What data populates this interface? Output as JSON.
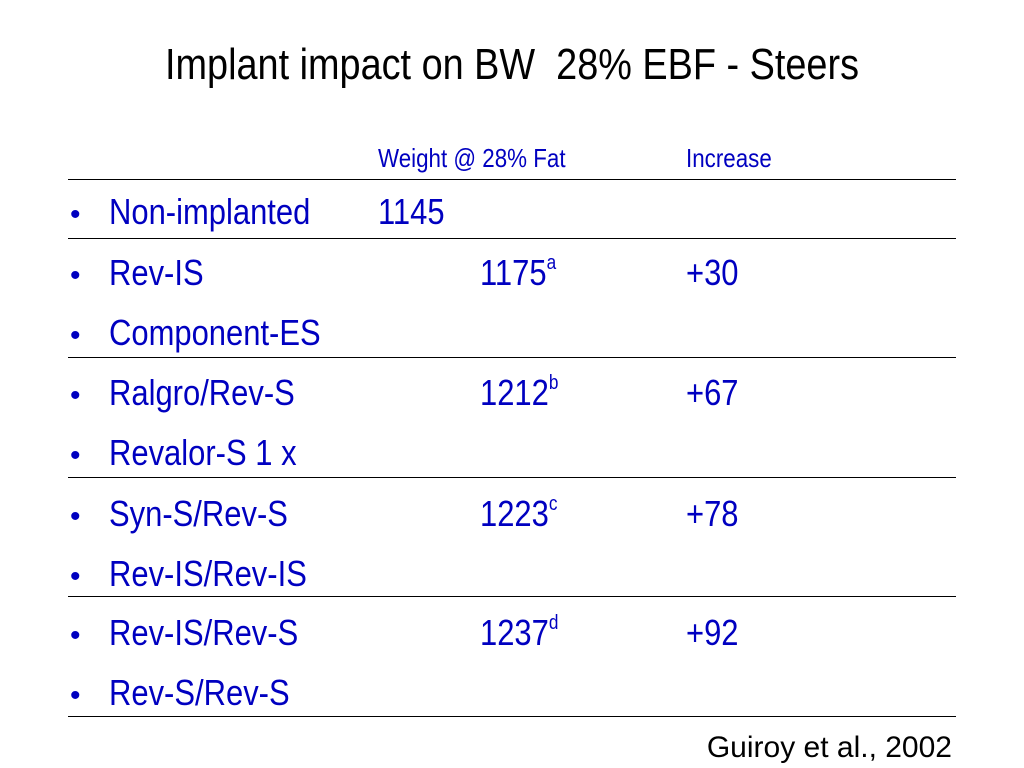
{
  "slide": {
    "title": "Implant impact on BW  28% EBF - Steers",
    "citation": "Guiroy et al., 2002"
  },
  "table": {
    "headers": {
      "weight": "Weight @ 28% Fat",
      "increase": "Increase"
    },
    "bullet_glyph": "•",
    "rows": [
      {
        "label": "Non-implanted",
        "weight": "1145",
        "superscript": "",
        "increase": ""
      },
      {
        "label": "Rev-IS",
        "weight": "1175",
        "superscript": "a",
        "increase": "+30"
      },
      {
        "label": "Component-ES",
        "weight": "",
        "superscript": "",
        "increase": ""
      },
      {
        "label": "Ralgro/Rev-S",
        "weight": "1212",
        "superscript": "b",
        "increase": "+67"
      },
      {
        "label": "Revalor-S 1 x",
        "weight": "",
        "superscript": "",
        "increase": ""
      },
      {
        "label": "Syn-S/Rev-S",
        "weight": "1223",
        "superscript": "c",
        "increase": "+78"
      },
      {
        "label": "Rev-IS/Rev-IS",
        "weight": "",
        "superscript": "",
        "increase": ""
      },
      {
        "label": "Rev-IS/Rev-S",
        "weight": "1237",
        "superscript": "d",
        "increase": "+92"
      },
      {
        "label": "Rev-S/Rev-S",
        "weight": "",
        "superscript": "",
        "increase": ""
      }
    ]
  },
  "colors": {
    "text": "#0000c0",
    "title": "#000000",
    "rule": "#000000"
  }
}
